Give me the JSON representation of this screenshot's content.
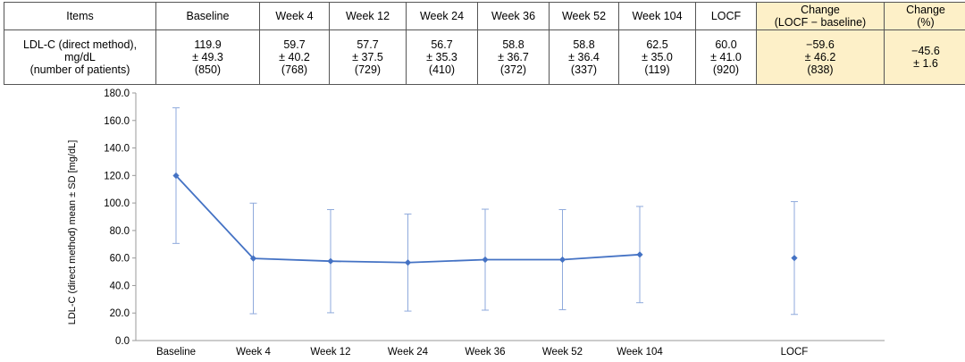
{
  "table": {
    "header": [
      "Items",
      "Baseline",
      "Week 4",
      "Week 12",
      "Week 24",
      "Week 36",
      "Week 52",
      "Week 104",
      "LOCF",
      "Change\n(LOCF − baseline)",
      "Change\n(%)"
    ],
    "row": [
      "LDL-C (direct method),\nmg/dL\n(number of patients)",
      "119.9\n± 49.3\n(850)",
      "59.7\n± 40.2\n(768)",
      "57.7\n± 37.5\n(729)",
      "56.7\n± 35.3\n(410)",
      "58.8\n± 36.7\n(372)",
      "58.8\n± 36.4\n(337)",
      "62.5\n± 35.0\n(119)",
      "60.0\n± 41.0\n(920)",
      "−59.6\n± 46.2\n(838)",
      "−45.6\n± 1.6"
    ],
    "highlight_color": "#fdf0c8"
  },
  "chart_data": {
    "type": "line",
    "ylabel": "LDL-C (direct method) mean ± SD [mg/dL]",
    "ylim": [
      0,
      180
    ],
    "yticks": [
      "0.0",
      "20.0",
      "40.0",
      "60.0",
      "80.0",
      "100.0",
      "120.0",
      "140.0",
      "160.0",
      "180.0"
    ],
    "categories": [
      "Baseline",
      "Week 4",
      "Week 12",
      "Week 24",
      "Week 36",
      "Week 52",
      "Week 104",
      "",
      "LOCF"
    ],
    "series": [
      {
        "mean": [
          119.9,
          59.7,
          57.7,
          56.7,
          58.8,
          58.8,
          62.5
        ],
        "sd": [
          49.3,
          40.2,
          37.5,
          35.3,
          36.7,
          36.4,
          35.0
        ],
        "category_index": [
          0,
          1,
          2,
          3,
          4,
          5,
          6
        ],
        "connected": true
      },
      {
        "mean": [
          60.0
        ],
        "sd": [
          41.0
        ],
        "category_index": [
          8
        ],
        "connected": false
      }
    ],
    "color": "#4472c4",
    "errorbar_color": "#8faadc",
    "grid": false
  }
}
